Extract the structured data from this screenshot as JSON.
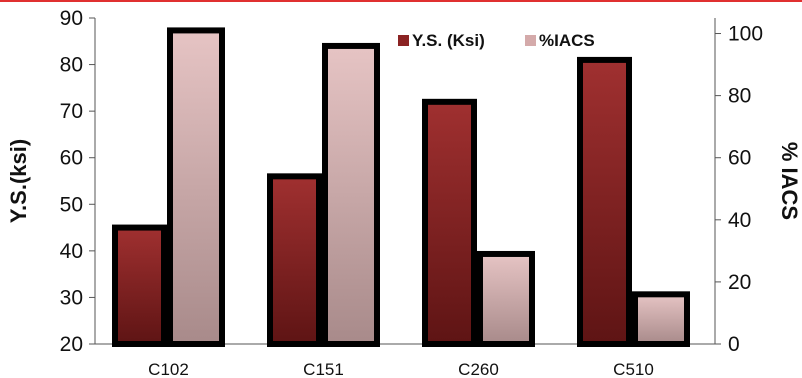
{
  "chart_data": {
    "type": "bar",
    "categories": [
      "C102",
      "C151",
      "C260",
      "C510"
    ],
    "series": [
      {
        "name": "Y.S. (Ksi)",
        "axis": "left",
        "values": [
          45,
          56,
          72,
          81
        ],
        "color": "#8b2323"
      },
      {
        "name": "%IACS",
        "axis": "right",
        "values": [
          101,
          96,
          29,
          16
        ],
        "color": "#d4aaaa"
      }
    ],
    "ylabel": "Y.S.(ksi)",
    "ylabel_right": "% IACS",
    "ylim": [
      20,
      90
    ],
    "ylim_right": [
      0,
      105
    ],
    "yticks": [
      20,
      30,
      40,
      50,
      60,
      70,
      80,
      90
    ],
    "yticks_right": [
      0,
      20,
      40,
      60,
      80,
      100
    ],
    "legend": "top-right",
    "grid": false,
    "accent_line_color": "#e03030"
  }
}
